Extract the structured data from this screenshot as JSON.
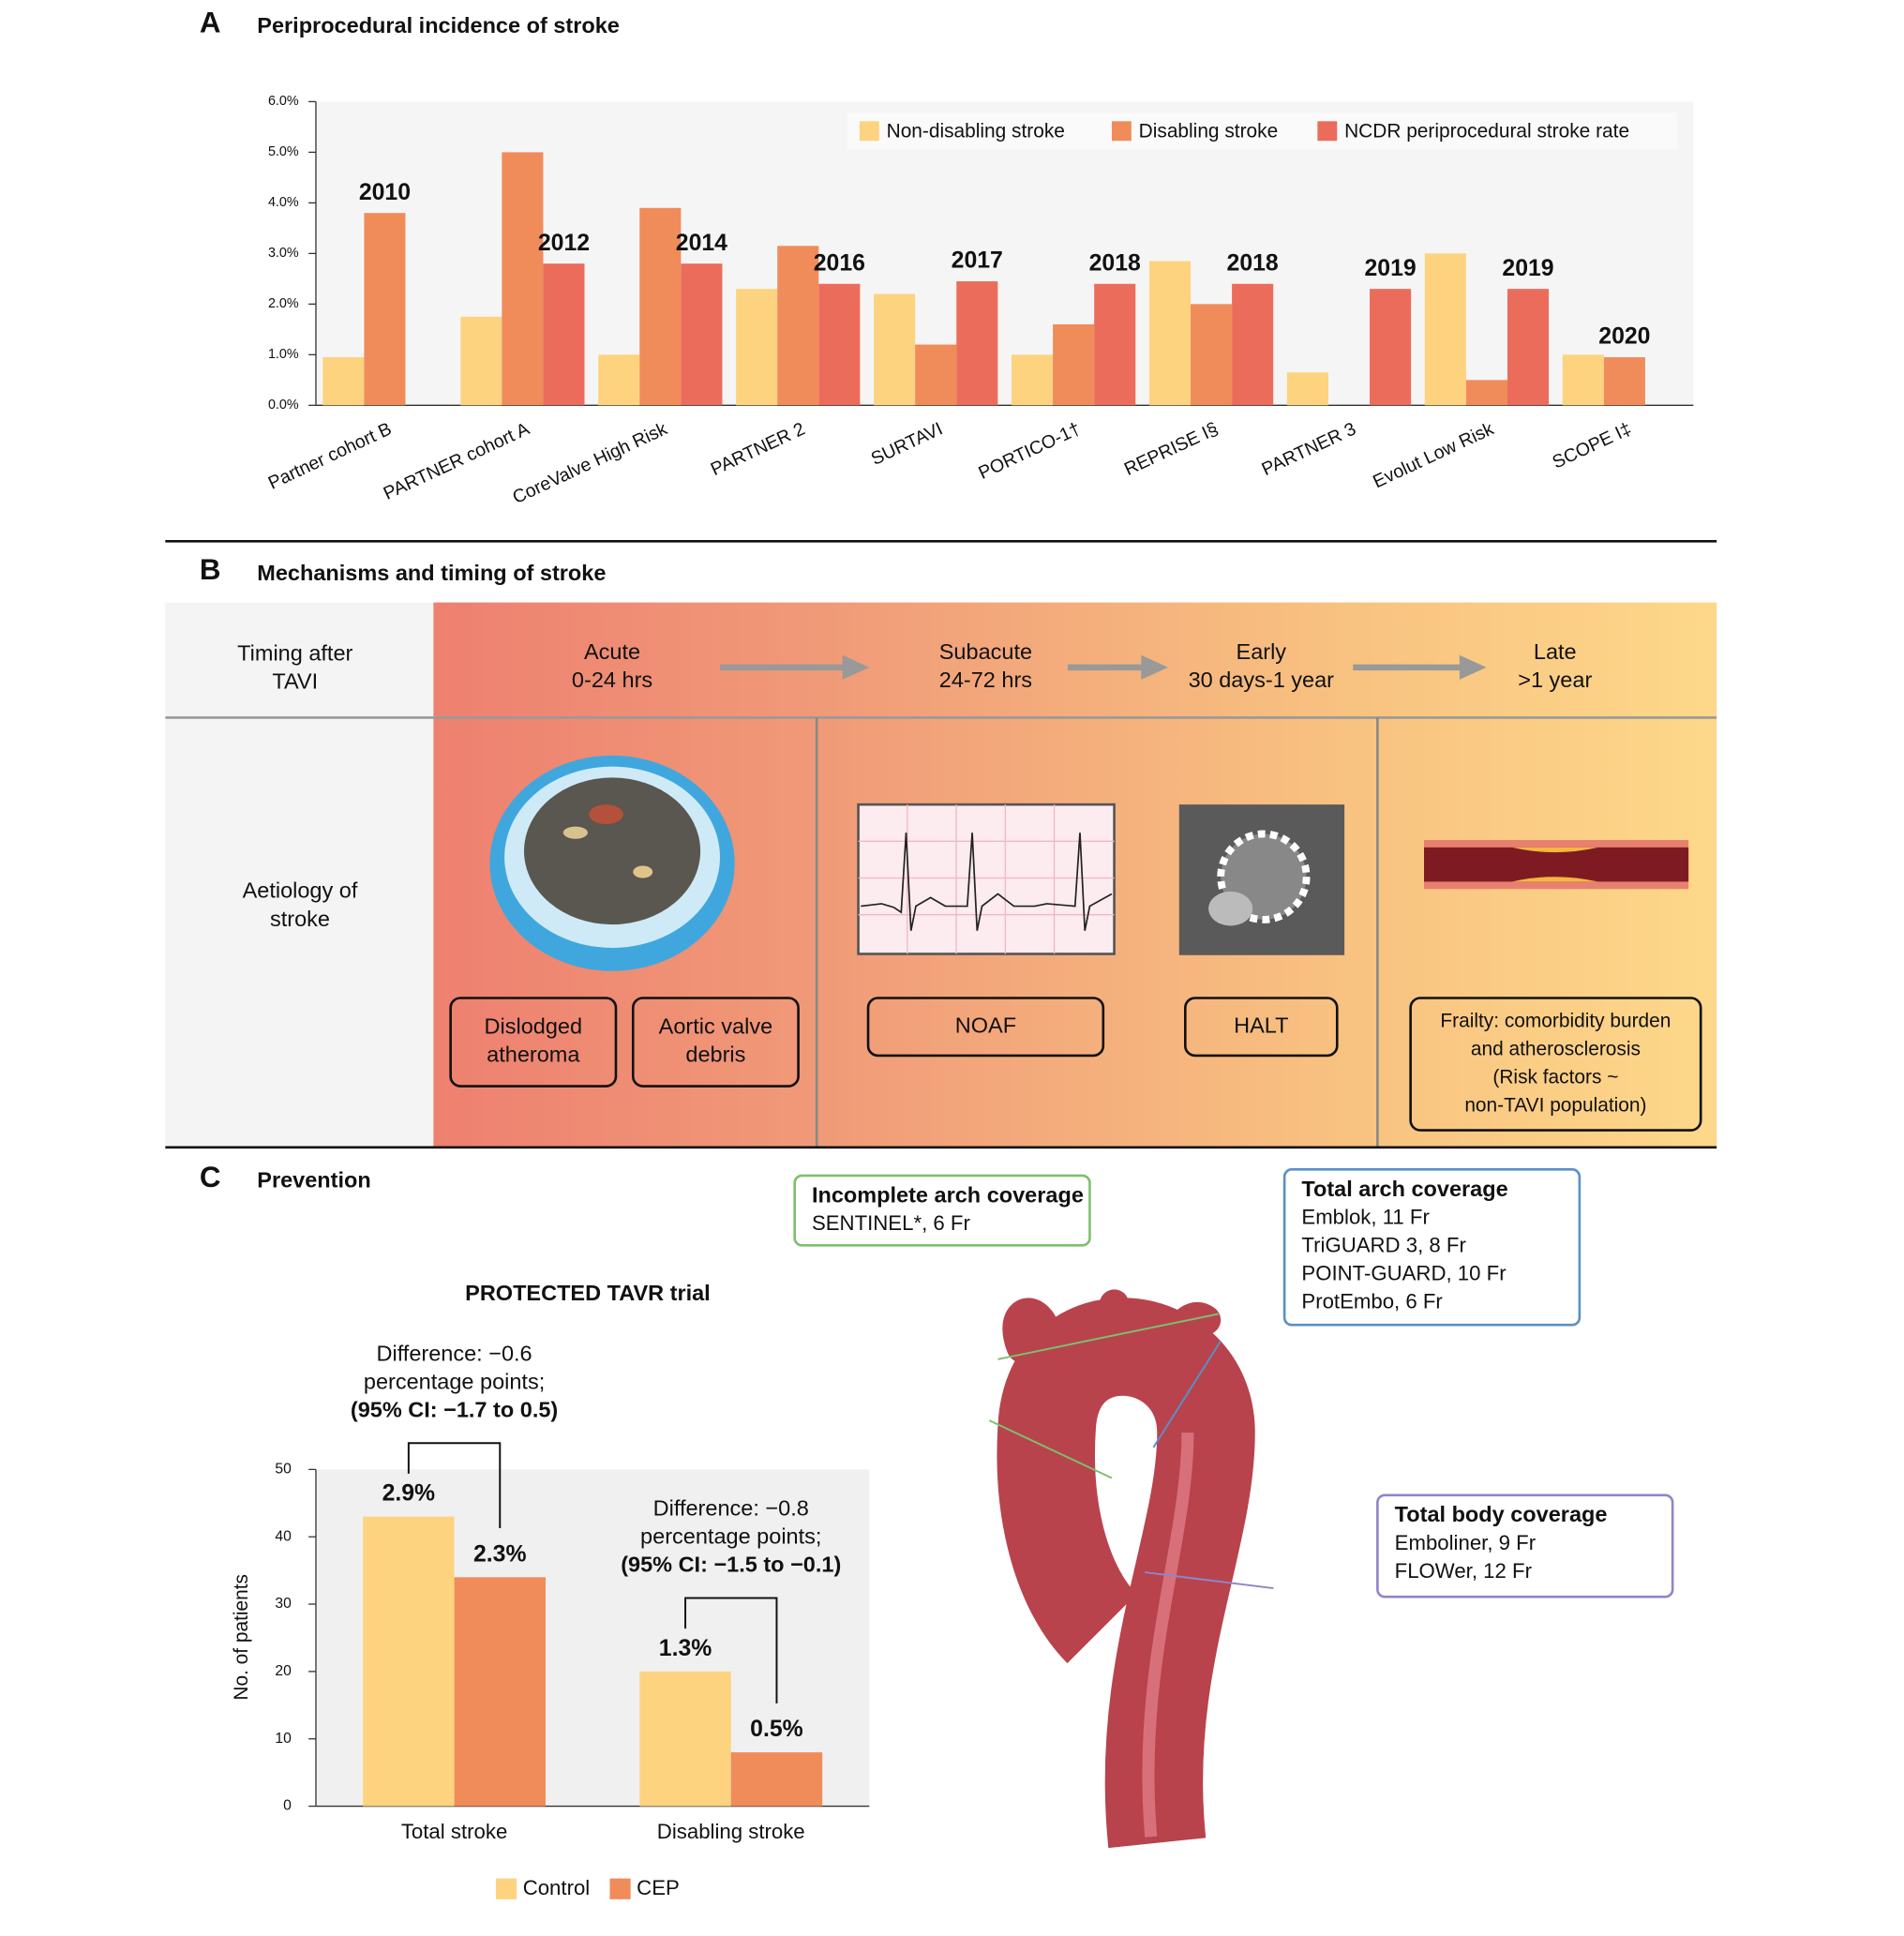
{
  "letters": [
    "A",
    "B",
    "C"
  ],
  "chart_data": [
    {
      "type": "bar",
      "title": "Periprocedural incidence of stroke",
      "categories": [
        "Partner cohort B",
        "PARTNER cohort A",
        "CoreValve High Risk",
        "PARTNER 2",
        "SURTAVI",
        "PORTICO-1†",
        "REPRISE I§",
        "PARTNER 3",
        "Evolut Low Risk",
        "SCOPE I‡"
      ],
      "series": [
        {
          "name": "Non-disabling stroke",
          "color": "#fdd37f",
          "values": [
            0.95,
            1.75,
            1.0,
            2.3,
            2.2,
            1.0,
            2.85,
            0.65,
            3.0,
            1.0
          ]
        },
        {
          "name": "Disabling stroke",
          "color": "#f08c5a",
          "values": [
            3.8,
            5.0,
            3.9,
            3.15,
            1.2,
            1.6,
            2.0,
            null,
            0.5,
            0.95
          ]
        },
        {
          "name": "NCDR periprocedural stroke rate",
          "color": "#ec6c5c",
          "values": [
            null,
            2.8,
            2.8,
            2.4,
            2.45,
            2.4,
            2.4,
            2.3,
            2.3,
            null
          ]
        }
      ],
      "annotations": [
        "2010",
        "2012",
        "2014",
        "2016",
        "2017",
        "2018",
        "2018",
        "2019",
        "2019",
        "2020"
      ],
      "ylim": [
        0,
        6
      ],
      "yticks": [
        {
          "value": 0,
          "label": "0.0%"
        },
        {
          "value": 1,
          "label": "1.0%"
        },
        {
          "value": 2,
          "label": "2.0%"
        },
        {
          "value": 3,
          "label": "3.0%"
        },
        {
          "value": 4,
          "label": "4.0%"
        },
        {
          "value": 5,
          "label": "5.0%"
        },
        {
          "value": 6,
          "label": "6.0%"
        }
      ]
    },
    {
      "type": "bar",
      "title": "PROTECTED TAVR trial",
      "ylabel": "No. of patients",
      "categories": [
        "Total stroke",
        "Disabling stroke"
      ],
      "series": [
        {
          "name": "Control",
          "color": "#fdd37f",
          "values": [
            43,
            20
          ],
          "annotations": [
            "2.9%",
            "1.3%"
          ]
        },
        {
          "name": "CEP",
          "color": "#f08c5a",
          "values": [
            34,
            8
          ],
          "annotations": [
            "2.3%",
            "0.5%"
          ]
        }
      ],
      "differences": [
        [
          "Difference: −0.6",
          "percentage points;",
          "(95% CI: −1.7 to 0.5)"
        ],
        [
          "Difference: −0.8",
          "percentage points;",
          "(95% CI: −1.5 to −0.1)"
        ]
      ],
      "ylim": [
        0,
        50
      ],
      "yticks": [
        0,
        10,
        20,
        30,
        40,
        50
      ]
    }
  ],
  "panel_b": {
    "title": "Mechanisms and timing of stroke",
    "timing_label": [
      "Timing after",
      "TAVI"
    ],
    "aetiology_label": [
      "Aetiology of",
      "stroke"
    ],
    "phases": [
      [
        "Acute",
        "0-24 hrs"
      ],
      [
        "Subacute",
        "24-72 hrs"
      ],
      [
        "Early",
        "30 days-1 year"
      ],
      [
        "Late",
        ">1 year"
      ]
    ],
    "causes": [
      [
        "Dislodged",
        "atheroma"
      ],
      [
        "Aortic valve",
        "debris"
      ],
      [
        "NOAF"
      ],
      [
        "HALT"
      ],
      [
        "Frailty: comorbidity burden",
        "and atherosclerosis",
        "(Risk factors ~",
        "non-TAVI population)"
      ]
    ]
  },
  "panel_c": {
    "title": "Prevention",
    "devices": [
      {
        "heading": "Incomplete arch coverage",
        "items": [
          "SENTINEL*, 6 Fr"
        ]
      },
      {
        "heading": "Total arch coverage",
        "items": [
          "Emblok, 11 Fr",
          "TriGUARD 3, 8 Fr",
          "POINT-GUARD, 10 Fr",
          "ProtEmbo, 6 Fr"
        ]
      },
      {
        "heading": "Total body coverage",
        "items": [
          "Emboliner, 9 Fr",
          "FLOWer, 12 Fr"
        ]
      }
    ]
  }
}
